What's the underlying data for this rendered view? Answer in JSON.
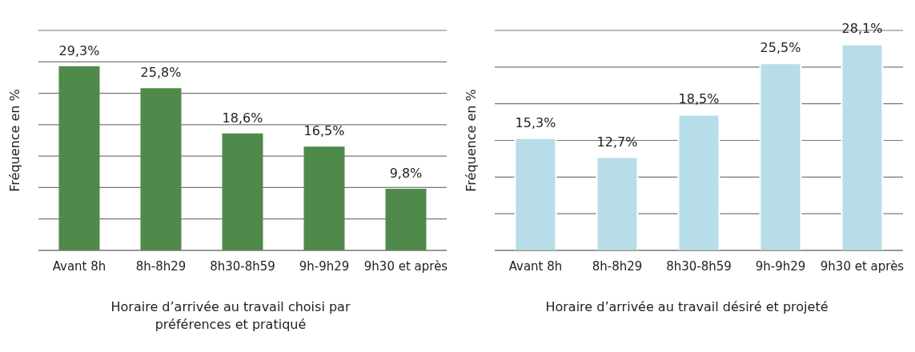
{
  "chart_data": [
    {
      "type": "bar",
      "xlabel": "Horaire d’arrivée au travail choisi par préférences et pratiqué",
      "ylabel": "Fréquence en %",
      "categories": [
        "Avant 8h",
        "8h-8h29",
        "8h30-8h59",
        "9h-9h29",
        "9h30 et après"
      ],
      "values": [
        29.3,
        25.8,
        18.6,
        16.5,
        9.8
      ],
      "value_labels": [
        "29,3%",
        "25,8%",
        "18,6%",
        "16,5%",
        "9,8%"
      ],
      "color": "#4f8a4a",
      "ylim": [
        0,
        35
      ],
      "yticks": [
        {
          "value": 0,
          "label": null
        },
        {
          "value": 5,
          "label": null
        },
        {
          "value": 10,
          "label": null
        },
        {
          "value": 15,
          "label": null
        },
        {
          "value": 20,
          "label": null
        },
        {
          "value": 25,
          "label": null
        },
        {
          "value": 30,
          "label": null
        },
        {
          "value": 35,
          "label": null
        }
      ],
      "grid": "y",
      "tick_labels": "x"
    },
    {
      "type": "bar",
      "xlabel": "Horaire d’arrivée au travail désiré et projeté",
      "ylabel": "Fréquence en %",
      "categories": [
        "Avant 8h",
        "8h-8h29",
        "8h30-8h59",
        "9h-9h29",
        "9h30 et après"
      ],
      "values": [
        15.3,
        12.7,
        18.5,
        25.5,
        28.1
      ],
      "value_labels": [
        "15,3%",
        "12,7%",
        "18,5%",
        "25,5%",
        "28,1%"
      ],
      "color": "#b7dde8",
      "ylim": [
        0,
        30
      ],
      "yticks": [
        {
          "value": 0,
          "label": null
        },
        {
          "value": 5,
          "label": null
        },
        {
          "value": 10,
          "label": null
        },
        {
          "value": 15,
          "label": null
        },
        {
          "value": 20,
          "label": null
        },
        {
          "value": 25,
          "label": null
        },
        {
          "value": 30,
          "label": null
        }
      ],
      "grid": "y",
      "tick_labels": "x"
    }
  ]
}
